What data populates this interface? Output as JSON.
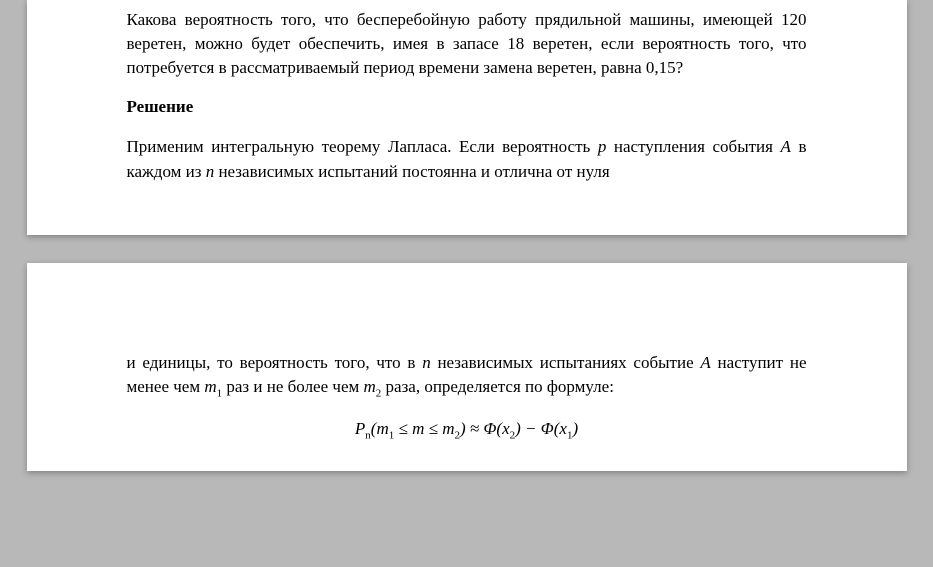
{
  "page1": {
    "problem": "Какова вероятность того, что бесперебойную работу прядильной машины, имеющей 120 веретен, можно будет обеспечить, имея в запасе 18 веретен, если вероятность того, что потребуется в рассматриваемый период времени замена веретен, равна 0,15?",
    "solution_heading": "Решение",
    "solution_start": "Применим интегральную теорему Лапласа. Если вероятность ",
    "var_p": "p",
    "solution_mid1": " наступления события ",
    "var_A": "A",
    "solution_mid2": " в каждом из ",
    "var_n": "n",
    "solution_end": " независимых испытаний постоянна и отлична от нуля"
  },
  "page2": {
    "continue_start": "и единицы, то вероятность того, что в ",
    "var_n": "n",
    "continue_mid1": " независимых испытаниях событие ",
    "var_A": "A",
    "continue_mid2": " наступит не менее чем ",
    "var_m1": "m",
    "sub_1": "1",
    "continue_mid3": " раз и не более чем ",
    "var_m2": "m",
    "sub_2": "2",
    "continue_end": " раза, определяется по формуле:",
    "formula": {
      "P": "P",
      "P_sub": "n",
      "open": "(",
      "m1": "m",
      "m1_sub": "1",
      "le1": " ≤ ",
      "m": "m",
      "le2": " ≤ ",
      "m2": "m",
      "m2_sub": "2",
      "close": ")",
      "approx": " ≈ ",
      "Phi1": "Φ(",
      "x2": "x",
      "x2_sub": "2",
      "mid": ") − ",
      "Phi2": "Φ(",
      "x1": "x",
      "x1_sub": "1",
      "end": ")"
    }
  },
  "styling": {
    "font_family": "Times New Roman",
    "body_fontsize_pt": 13,
    "text_color": "#000000",
    "page_bg": "#ffffff",
    "outer_bg": "#b8b8b8",
    "line_height": 1.4,
    "text_align": "justify"
  }
}
